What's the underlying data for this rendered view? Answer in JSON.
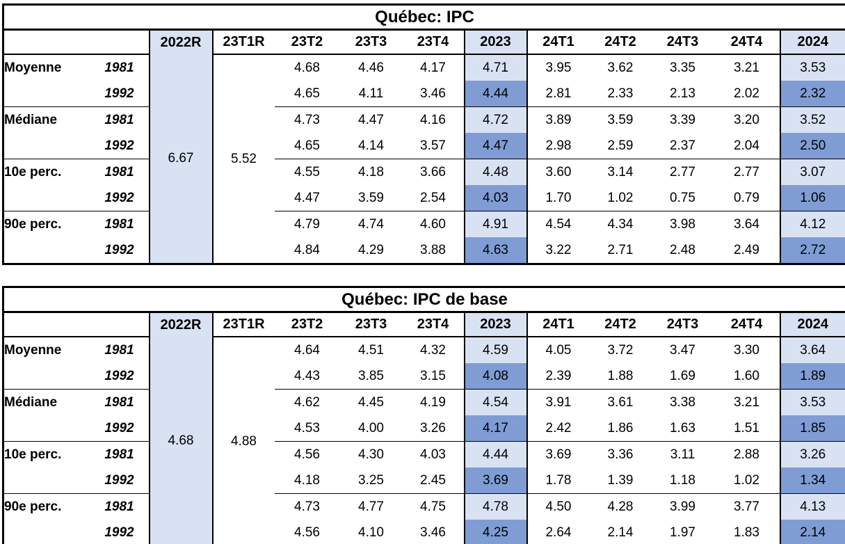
{
  "colors": {
    "light_blue": "#D9E2F3",
    "dark_blue": "#7F9DD4",
    "border": "#000000",
    "background": "#FFFFFF"
  },
  "tables": [
    {
      "title": "Québec: IPC",
      "columns": [
        "2022R",
        "23T1R",
        "23T2",
        "23T3",
        "23T4",
        "2023",
        "24T1",
        "24T2",
        "24T3",
        "24T4",
        "2024"
      ],
      "merged_2022R": "6.67",
      "merged_23T1R": "5.52",
      "rows": [
        {
          "label": "Moyenne",
          "year": "1981",
          "values": [
            "4.68",
            "4.46",
            "4.17",
            "4.71",
            "3.95",
            "3.62",
            "3.35",
            "3.21",
            "3.53"
          ]
        },
        {
          "label": "",
          "year": "1992",
          "values": [
            "4.65",
            "4.11",
            "3.46",
            "4.44",
            "2.81",
            "2.33",
            "2.13",
            "2.02",
            "2.32"
          ]
        },
        {
          "label": "Médiane",
          "year": "1981",
          "values": [
            "4.73",
            "4.47",
            "4.16",
            "4.72",
            "3.89",
            "3.59",
            "3.39",
            "3.20",
            "3.52"
          ]
        },
        {
          "label": "",
          "year": "1992",
          "values": [
            "4.65",
            "4.14",
            "3.57",
            "4.47",
            "2.98",
            "2.59",
            "2.37",
            "2.04",
            "2.50"
          ]
        },
        {
          "label": "10e perc.",
          "year": "1981",
          "values": [
            "4.55",
            "4.18",
            "3.66",
            "4.48",
            "3.60",
            "3.14",
            "2.77",
            "2.77",
            "3.07"
          ]
        },
        {
          "label": "",
          "year": "1992",
          "values": [
            "4.47",
            "3.59",
            "2.54",
            "4.03",
            "1.70",
            "1.02",
            "0.75",
            "0.79",
            "1.06"
          ]
        },
        {
          "label": "90e perc.",
          "year": "1981",
          "values": [
            "4.79",
            "4.74",
            "4.60",
            "4.91",
            "4.54",
            "4.34",
            "3.98",
            "3.64",
            "4.12"
          ]
        },
        {
          "label": "",
          "year": "1992",
          "values": [
            "4.84",
            "4.29",
            "3.88",
            "4.63",
            "3.22",
            "2.71",
            "2.48",
            "2.49",
            "2.72"
          ]
        }
      ]
    },
    {
      "title": "Québec: IPC de base",
      "columns": [
        "2022R",
        "23T1R",
        "23T2",
        "23T3",
        "23T4",
        "2023",
        "24T1",
        "24T2",
        "24T3",
        "24T4",
        "2024"
      ],
      "merged_2022R": "4.68",
      "merged_23T1R": "4.88",
      "rows": [
        {
          "label": "Moyenne",
          "year": "1981",
          "values": [
            "4.64",
            "4.51",
            "4.32",
            "4.59",
            "4.05",
            "3.72",
            "3.47",
            "3.30",
            "3.64"
          ]
        },
        {
          "label": "",
          "year": "1992",
          "values": [
            "4.43",
            "3.85",
            "3.15",
            "4.08",
            "2.39",
            "1.88",
            "1.69",
            "1.60",
            "1.89"
          ]
        },
        {
          "label": "Médiane",
          "year": "1981",
          "values": [
            "4.62",
            "4.45",
            "4.19",
            "4.54",
            "3.91",
            "3.61",
            "3.38",
            "3.21",
            "3.53"
          ]
        },
        {
          "label": "",
          "year": "1992",
          "values": [
            "4.53",
            "4.00",
            "3.26",
            "4.17",
            "2.42",
            "1.86",
            "1.63",
            "1.51",
            "1.85"
          ]
        },
        {
          "label": "10e perc.",
          "year": "1981",
          "values": [
            "4.56",
            "4.30",
            "4.03",
            "4.44",
            "3.69",
            "3.36",
            "3.11",
            "2.88",
            "3.26"
          ]
        },
        {
          "label": "",
          "year": "1992",
          "values": [
            "4.18",
            "3.25",
            "2.45",
            "3.69",
            "1.78",
            "1.39",
            "1.18",
            "1.02",
            "1.34"
          ]
        },
        {
          "label": "90e perc.",
          "year": "1981",
          "values": [
            "4.73",
            "4.77",
            "4.75",
            "4.78",
            "4.50",
            "4.28",
            "3.99",
            "3.77",
            "4.13"
          ]
        },
        {
          "label": "",
          "year": "1992",
          "values": [
            "4.56",
            "4.10",
            "3.46",
            "4.25",
            "2.64",
            "2.14",
            "1.97",
            "1.83",
            "2.14"
          ]
        }
      ]
    }
  ]
}
